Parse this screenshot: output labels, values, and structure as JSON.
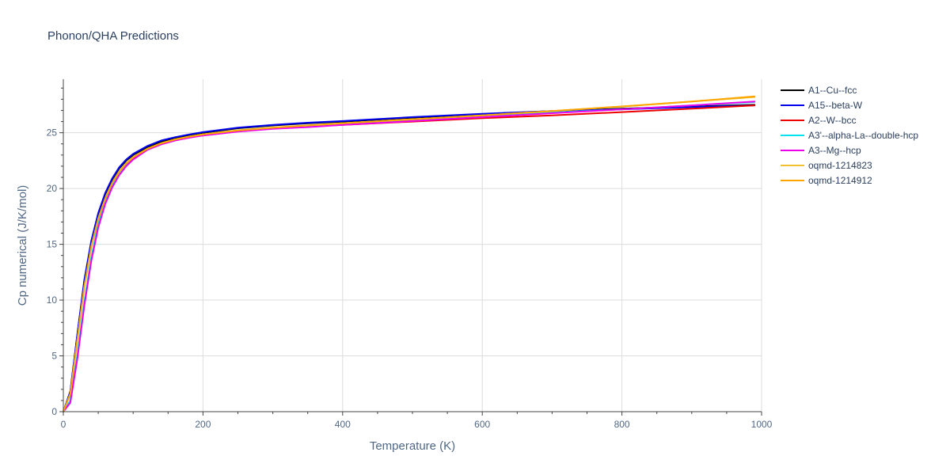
{
  "chart_data": {
    "type": "line",
    "title": "Phonon/QHA Predictions",
    "xlabel": "Temperature (K)",
    "ylabel": "Cp numerical (J/K/mol)",
    "xlim": [
      0,
      1000
    ],
    "ylim": [
      0,
      29.8
    ],
    "xticks": [
      0,
      200,
      400,
      600,
      800,
      1000
    ],
    "yticks": [
      0,
      5,
      10,
      15,
      20,
      25
    ],
    "grid": true,
    "legend_position": "top-right",
    "series": [
      {
        "name": "A1--Cu--fcc",
        "color": "#000000",
        "width": 2,
        "x": [
          0,
          10,
          20,
          30,
          40,
          50,
          60,
          70,
          80,
          90,
          100,
          120,
          140,
          160,
          180,
          200,
          250,
          300,
          350,
          400,
          500,
          600,
          700,
          800,
          900,
          990
        ],
        "y": [
          0,
          1.8,
          6.8,
          11.7,
          15.2,
          17.7,
          19.5,
          20.8,
          21.8,
          22.5,
          23.0,
          23.7,
          24.2,
          24.5,
          24.8,
          25.0,
          25.4,
          25.65,
          25.85,
          26.0,
          26.35,
          26.65,
          26.95,
          27.15,
          27.35,
          27.5
        ]
      },
      {
        "name": "A15--beta-W",
        "color": "#0000ee",
        "width": 2,
        "x": [
          0,
          10,
          20,
          30,
          40,
          50,
          60,
          70,
          80,
          90,
          100,
          120,
          140,
          160,
          180,
          200,
          250,
          300,
          350,
          400,
          500,
          600,
          700,
          800,
          900,
          990
        ],
        "y": [
          0,
          1.8,
          6.9,
          11.8,
          15.3,
          17.8,
          19.6,
          20.9,
          21.9,
          22.6,
          23.1,
          23.8,
          24.3,
          24.6,
          24.85,
          25.05,
          25.45,
          25.7,
          25.9,
          26.05,
          26.4,
          26.7,
          26.95,
          27.1,
          27.3,
          27.45
        ]
      },
      {
        "name": "A2--W--bcc",
        "color": "#ee0000",
        "width": 2,
        "x": [
          0,
          10,
          20,
          30,
          40,
          50,
          60,
          70,
          80,
          90,
          100,
          120,
          140,
          160,
          180,
          200,
          250,
          300,
          350,
          400,
          500,
          600,
          700,
          800,
          900,
          990
        ],
        "y": [
          0,
          0.9,
          4.8,
          9.6,
          13.6,
          16.6,
          18.7,
          20.2,
          21.3,
          22.1,
          22.7,
          23.5,
          24.0,
          24.35,
          24.6,
          24.8,
          25.15,
          25.4,
          25.55,
          25.7,
          26.0,
          26.3,
          26.55,
          26.85,
          27.15,
          27.45
        ]
      },
      {
        "name": "A3'--alpha-La--double-hcp",
        "color": "#00e5ee",
        "width": 2,
        "x": [
          0,
          10,
          20,
          30,
          40,
          50,
          60,
          70,
          80,
          90,
          100,
          120,
          140,
          160,
          180,
          200,
          250,
          300,
          350,
          400,
          500,
          600,
          700,
          800,
          900,
          990
        ],
        "y": [
          0,
          1.0,
          5.0,
          9.8,
          13.8,
          16.8,
          18.8,
          20.3,
          21.4,
          22.2,
          22.8,
          23.55,
          24.05,
          24.4,
          24.65,
          24.85,
          25.2,
          25.45,
          25.6,
          25.75,
          26.1,
          26.45,
          26.8,
          27.1,
          27.45,
          27.75
        ]
      },
      {
        "name": "A3--Mg--hcp",
        "color": "#ee00ee",
        "width": 2,
        "x": [
          0,
          10,
          20,
          30,
          40,
          50,
          60,
          70,
          80,
          90,
          100,
          120,
          140,
          160,
          180,
          200,
          250,
          300,
          350,
          400,
          500,
          600,
          700,
          800,
          900,
          990
        ],
        "y": [
          0,
          0.8,
          4.7,
          9.5,
          13.5,
          16.5,
          18.6,
          20.1,
          21.2,
          22.0,
          22.6,
          23.45,
          23.95,
          24.3,
          24.55,
          24.75,
          25.1,
          25.35,
          25.5,
          25.7,
          26.05,
          26.4,
          26.75,
          27.1,
          27.45,
          27.8
        ]
      },
      {
        "name": "oqmd-1214823",
        "color": "#f2c12e",
        "width": 2,
        "x": [
          0,
          10,
          20,
          30,
          40,
          50,
          60,
          70,
          80,
          90,
          100,
          120,
          140,
          160,
          180,
          200,
          250,
          300,
          350,
          400,
          500,
          600,
          700,
          800,
          900,
          990
        ],
        "y": [
          0,
          1.6,
          6.4,
          11.2,
          14.8,
          17.3,
          19.1,
          20.5,
          21.5,
          22.25,
          22.8,
          23.55,
          24.05,
          24.4,
          24.65,
          24.85,
          25.2,
          25.45,
          25.65,
          25.85,
          26.2,
          26.55,
          26.95,
          27.35,
          27.8,
          28.2
        ]
      },
      {
        "name": "oqmd-1214912",
        "color": "#ffa500",
        "width": 2,
        "x": [
          0,
          10,
          20,
          30,
          40,
          50,
          60,
          70,
          80,
          90,
          100,
          120,
          140,
          160,
          180,
          200,
          250,
          300,
          350,
          400,
          500,
          600,
          700,
          800,
          900,
          990
        ],
        "y": [
          0,
          1.6,
          6.4,
          11.2,
          14.8,
          17.3,
          19.1,
          20.5,
          21.5,
          22.25,
          22.8,
          23.55,
          24.05,
          24.4,
          24.65,
          24.85,
          25.2,
          25.45,
          25.65,
          25.85,
          26.2,
          26.55,
          26.95,
          27.35,
          27.8,
          28.25
        ]
      }
    ]
  }
}
